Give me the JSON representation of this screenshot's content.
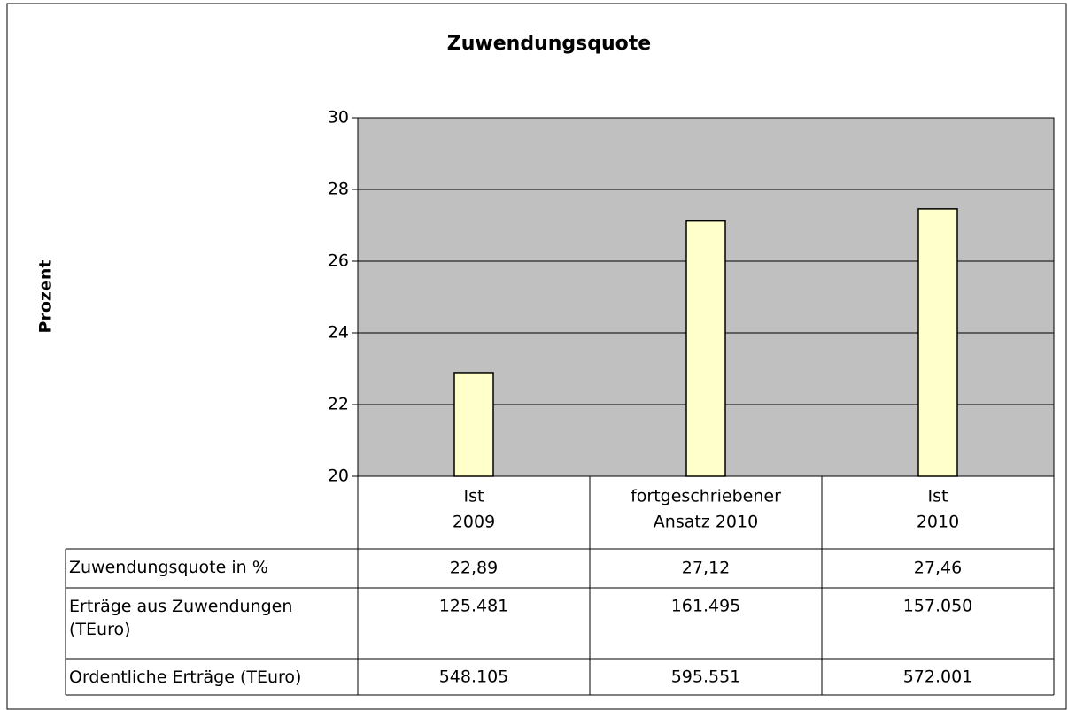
{
  "chart_data": {
    "type": "bar",
    "title": "Zuwendungsquote",
    "y_label": "Prozent",
    "categories": [
      [
        "Ist",
        "2009"
      ],
      [
        "fortgeschriebener",
        "Ansatz 2010"
      ],
      [
        "Ist",
        "2010"
      ]
    ],
    "series": [
      {
        "name": "Zuwendungsquote in %",
        "color": "#ffffcc",
        "values": [
          22.89,
          27.12,
          27.46
        ],
        "value_labels": [
          "22,89",
          "27,12",
          "27,46"
        ]
      }
    ],
    "ylim": [
      20,
      30
    ],
    "yticks": [
      20,
      22,
      24,
      26,
      28,
      30
    ],
    "grid": true,
    "plot_background": "#c0c0c0",
    "table": {
      "rows": [
        {
          "label": "Erträge aus Zuwendungen (TEuro)",
          "values": [
            125481,
            161495,
            157050
          ],
          "value_labels": [
            "125.481",
            "161.495",
            "157.050"
          ]
        },
        {
          "label": "Ordentliche Erträge (TEuro)",
          "values": [
            548105,
            595551,
            572001
          ],
          "value_labels": [
            "548.105",
            "595.551",
            "572.001"
          ]
        }
      ]
    }
  }
}
